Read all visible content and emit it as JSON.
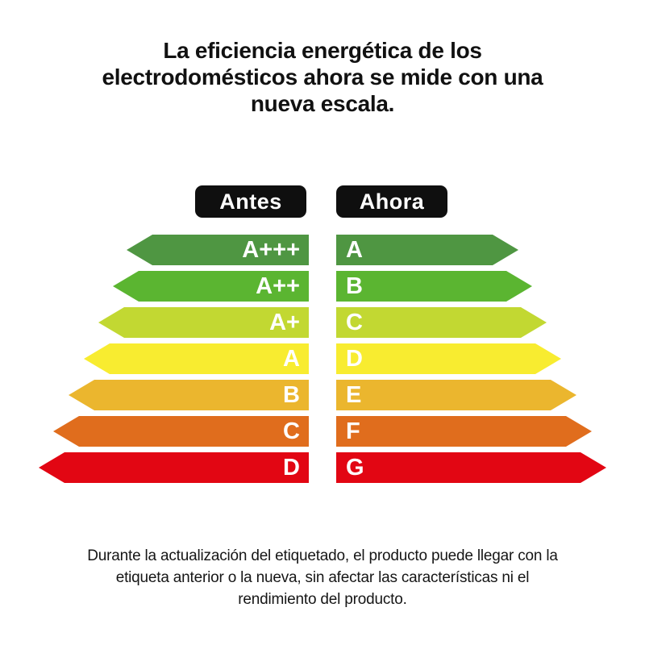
{
  "title": {
    "line1": "La eficiencia energética de los",
    "line2": "electrodomésticos ahora se mide con una",
    "line3": "nueva escala."
  },
  "badges": {
    "before": "Antes",
    "after": "Ahora"
  },
  "scale_rows": [
    {
      "before": "A+++",
      "now": "A",
      "color": "#4f9642"
    },
    {
      "before": "A++",
      "now": "B",
      "color": "#5bb531"
    },
    {
      "before": "A+",
      "now": "C",
      "color": "#c2d832"
    },
    {
      "before": "A",
      "now": "D",
      "color": "#f8ec30"
    },
    {
      "before": "B",
      "now": "E",
      "color": "#ebb62e"
    },
    {
      "before": "C",
      "now": "F",
      "color": "#e06d1d"
    },
    {
      "before": "D",
      "now": "G",
      "color": "#e20613"
    }
  ],
  "colors": {
    "badge_background": "#0f0f0f",
    "badge_text": "#ffffff",
    "arrow_text": "#ffffff",
    "title_text": "#111111",
    "footer_text": "#161616",
    "page_background": "#ffffff"
  },
  "footer": {
    "line1": "Durante la actualización del etiquetado, el producto puede llegar con la",
    "line2": "etiqueta anterior o la nueva, sin afectar las características ni el",
    "line3": "rendimiento del producto."
  }
}
